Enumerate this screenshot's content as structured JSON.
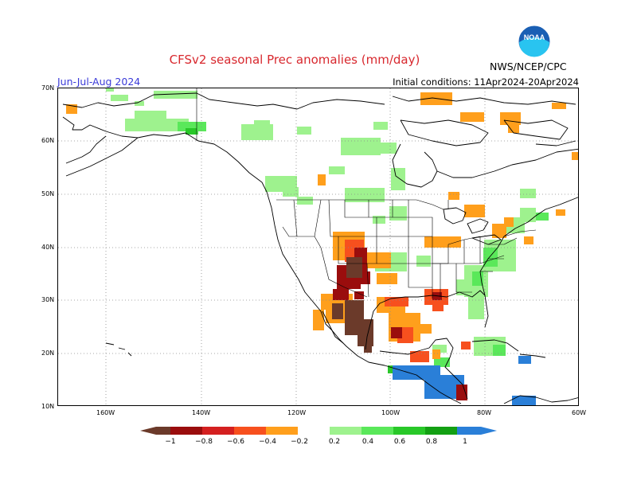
{
  "header": {
    "title": "CFSv2 seasonal Prec anomalies (mm/day)",
    "period": "Jun-Jul-Aug 2024",
    "initial_conditions": "Initial conditions: 11Apr2024-20Apr2024",
    "agency": "NWS/NCEP/CPC",
    "logo_text": "NOAA"
  },
  "map": {
    "lat_labels": [
      "70N",
      "60N",
      "50N",
      "40N",
      "30N",
      "20N",
      "10N"
    ],
    "lon_labels": [
      "160W",
      "140W",
      "120W",
      "100W",
      "80W",
      "60W"
    ]
  },
  "legend": {
    "ticks": [
      "−1",
      "−0.8",
      "−0.6",
      "−0.4",
      "−0.2",
      "0.2",
      "0.4",
      "0.6",
      "0.8",
      "1"
    ],
    "colors": [
      "#6b3a2a",
      "#9a0d0d",
      "#d42020",
      "#f7501e",
      "#ff9f1c",
      "#ffffff",
      "#9ef28e",
      "#5ae85a",
      "#28c828",
      "#13a013",
      "#2a7fd8"
    ]
  },
  "colors": {
    "dry_strong": "#6b3a2a",
    "dry": "#d42020",
    "dry_weak": "#ff9f1c",
    "wet_weak": "#9ef28e",
    "wet": "#5ae85a",
    "wet_strong": "#2a7fd8"
  }
}
